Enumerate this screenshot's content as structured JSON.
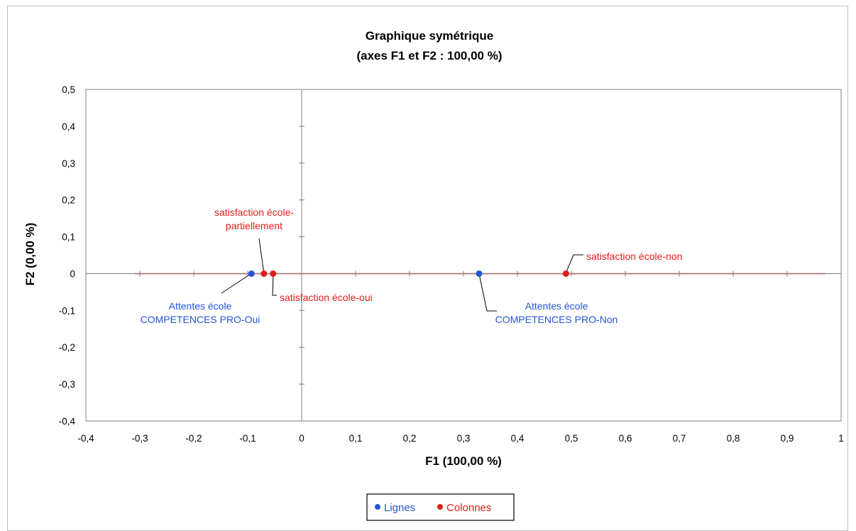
{
  "chart_data": {
    "type": "scatter",
    "title": "Graphique symétrique",
    "subtitle": "(axes F1 et F2 : 100,00 %)",
    "xlabel": "F1 (100,00 %)",
    "ylabel": "F2 (0,00 %)",
    "xlim": [
      -0.4,
      1
    ],
    "ylim": [
      -0.4,
      0.5
    ],
    "x_ticks": [
      "-0,4",
      "-0,3",
      "-0,2",
      "-0,1",
      "0",
      "0,1",
      "0,2",
      "0,3",
      "0,4",
      "0,5",
      "0,6",
      "0,7",
      "0,8",
      "0,9",
      "1"
    ],
    "y_ticks": [
      "0,5",
      "0,4",
      "0,3",
      "0,2",
      "0,1",
      "0",
      "-0,1",
      "-0,2",
      "-0,3",
      "-0,4"
    ],
    "grid": false,
    "legend_position": "bottom",
    "series": [
      {
        "name": "Lignes",
        "color": "#2255d6",
        "points": [
          {
            "x": -0.093,
            "y": 0,
            "label": [
              "Attentes école",
              "COMPETENCES PRO-Oui"
            ]
          },
          {
            "x": 0.329,
            "y": 0,
            "label": [
              "Attentes école",
              "COMPETENCES PRO-Non"
            ]
          }
        ]
      },
      {
        "name": "Colonnes",
        "color": "#e51b1b",
        "points": [
          {
            "x": -0.07,
            "y": 0,
            "label": [
              "satisfaction école-",
              "partiellement"
            ]
          },
          {
            "x": -0.053,
            "y": 0,
            "label": [
              "satisfaction école-oui"
            ]
          },
          {
            "x": 0.49,
            "y": 0,
            "label": [
              "satisfaction école-non"
            ]
          }
        ]
      }
    ],
    "reference_lines": [
      {
        "color": "#e51b1b",
        "x_range": [
          -0.31,
          0.97
        ],
        "y": 0
      }
    ]
  }
}
